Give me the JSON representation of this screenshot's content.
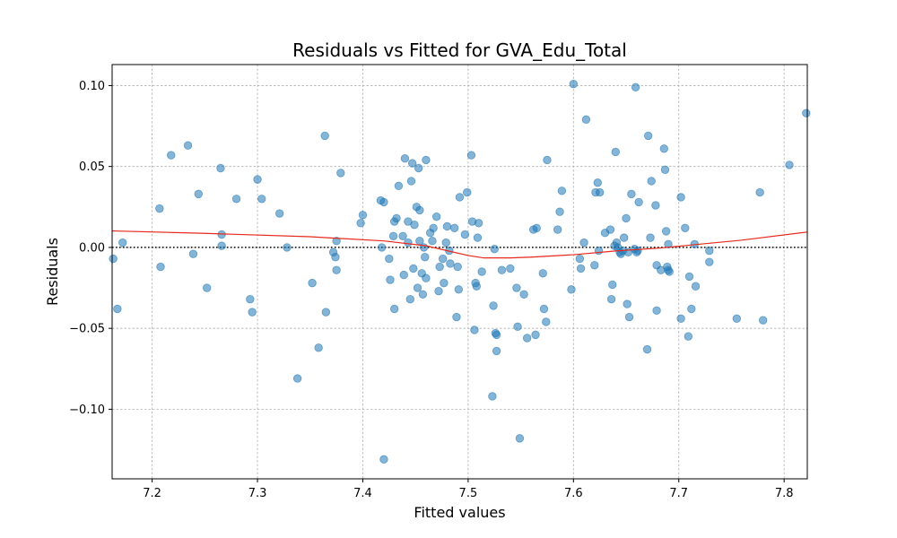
{
  "chart_data": {
    "type": "scatter",
    "title": "Residuals vs Fitted for GVA_Edu_Total",
    "xlabel": "Fitted values",
    "ylabel": "Residuals",
    "xlim": [
      7.162,
      7.822
    ],
    "ylim": [
      -0.143,
      0.113
    ],
    "xticks": [
      7.2,
      7.3,
      7.4,
      7.5,
      7.6,
      7.7,
      7.8
    ],
    "xtick_labels": [
      "7.2",
      "7.3",
      "7.4",
      "7.5",
      "7.6",
      "7.7",
      "7.8"
    ],
    "yticks": [
      -0.1,
      -0.05,
      0.0,
      0.05,
      0.1
    ],
    "ytick_labels": [
      "−0.10",
      "−0.05",
      "0.00",
      "0.05",
      "0.10"
    ],
    "grid": true,
    "reference_line": {
      "y": 0,
      "style": "dotted",
      "color": "#000000"
    },
    "colors": {
      "points": "#1f77b4",
      "lowess": "#e8291c",
      "grid": "#b0b0b0"
    },
    "lowess": {
      "x": [
        7.162,
        7.25,
        7.35,
        7.42,
        7.46,
        7.5,
        7.515,
        7.54,
        7.56,
        7.6,
        7.64,
        7.68,
        7.72,
        7.76,
        7.822
      ],
      "y": [
        0.0102,
        0.0087,
        0.0066,
        0.004,
        0.001,
        -0.005,
        -0.0065,
        -0.0065,
        -0.006,
        -0.0045,
        -0.0022,
        -0.0005,
        0.002,
        0.0045,
        0.0095
      ]
    },
    "points": [
      [
        7.163,
        -0.007
      ],
      [
        7.167,
        -0.038
      ],
      [
        7.172,
        0.003
      ],
      [
        7.207,
        0.024
      ],
      [
        7.208,
        -0.012
      ],
      [
        7.218,
        0.057
      ],
      [
        7.234,
        0.063
      ],
      [
        7.239,
        -0.004
      ],
      [
        7.244,
        0.033
      ],
      [
        7.252,
        -0.025
      ],
      [
        7.265,
        0.049
      ],
      [
        7.266,
        0.008
      ],
      [
        7.266,
        0.001
      ],
      [
        7.28,
        0.03
      ],
      [
        7.293,
        -0.032
      ],
      [
        7.295,
        -0.04
      ],
      [
        7.3,
        0.042
      ],
      [
        7.304,
        0.03
      ],
      [
        7.321,
        0.021
      ],
      [
        7.328,
        0.0
      ],
      [
        7.338,
        -0.081
      ],
      [
        7.352,
        -0.022
      ],
      [
        7.358,
        -0.062
      ],
      [
        7.364,
        0.069
      ],
      [
        7.365,
        -0.04
      ],
      [
        7.372,
        -0.003
      ],
      [
        7.374,
        -0.006
      ],
      [
        7.375,
        0.004
      ],
      [
        7.375,
        -0.014
      ],
      [
        7.379,
        0.046
      ],
      [
        7.398,
        0.015
      ],
      [
        7.4,
        0.02
      ],
      [
        7.417,
        0.029
      ],
      [
        7.418,
        0.0
      ],
      [
        7.42,
        0.028
      ],
      [
        7.42,
        -0.131
      ],
      [
        7.425,
        -0.007
      ],
      [
        7.426,
        -0.02
      ],
      [
        7.429,
        0.007
      ],
      [
        7.43,
        0.016
      ],
      [
        7.43,
        -0.038
      ],
      [
        7.432,
        0.018
      ],
      [
        7.434,
        0.038
      ],
      [
        7.438,
        0.007
      ],
      [
        7.439,
        -0.017
      ],
      [
        7.44,
        0.055
      ],
      [
        7.443,
        0.016
      ],
      [
        7.443,
        0.003
      ],
      [
        7.445,
        -0.032
      ],
      [
        7.446,
        0.041
      ],
      [
        7.447,
        0.052
      ],
      [
        7.448,
        -0.013
      ],
      [
        7.449,
        0.014
      ],
      [
        7.451,
        0.025
      ],
      [
        7.452,
        -0.025
      ],
      [
        7.453,
        0.049
      ],
      [
        7.454,
        0.023
      ],
      [
        7.454,
        0.004
      ],
      [
        7.456,
        -0.016
      ],
      [
        7.457,
        -0.029
      ],
      [
        7.458,
        0.0
      ],
      [
        7.459,
        -0.006
      ],
      [
        7.46,
        0.054
      ],
      [
        7.46,
        -0.019
      ],
      [
        7.464,
        0.009
      ],
      [
        7.466,
        0.004
      ],
      [
        7.467,
        0.012
      ],
      [
        7.47,
        0.019
      ],
      [
        7.472,
        -0.027
      ],
      [
        7.473,
        -0.012
      ],
      [
        7.476,
        -0.007
      ],
      [
        7.477,
        -0.022
      ],
      [
        7.479,
        0.003
      ],
      [
        7.48,
        0.013
      ],
      [
        7.482,
        -0.002
      ],
      [
        7.483,
        -0.01
      ],
      [
        7.487,
        0.012
      ],
      [
        7.489,
        -0.043
      ],
      [
        7.49,
        -0.012
      ],
      [
        7.491,
        -0.026
      ],
      [
        7.492,
        0.031
      ],
      [
        7.497,
        0.008
      ],
      [
        7.499,
        0.034
      ],
      [
        7.503,
        0.057
      ],
      [
        7.504,
        0.016
      ],
      [
        7.506,
        -0.051
      ],
      [
        7.507,
        -0.022
      ],
      [
        7.508,
        -0.024
      ],
      [
        7.509,
        0.006
      ],
      [
        7.51,
        0.015
      ],
      [
        7.513,
        -0.015
      ],
      [
        7.523,
        -0.092
      ],
      [
        7.524,
        -0.036
      ],
      [
        7.525,
        -0.001
      ],
      [
        7.526,
        -0.053
      ],
      [
        7.527,
        -0.054
      ],
      [
        7.527,
        -0.064
      ],
      [
        7.532,
        -0.014
      ],
      [
        7.54,
        -0.013
      ],
      [
        7.546,
        -0.025
      ],
      [
        7.547,
        -0.049
      ],
      [
        7.549,
        -0.118
      ],
      [
        7.553,
        -0.029
      ],
      [
        7.556,
        -0.056
      ],
      [
        7.562,
        0.011
      ],
      [
        7.564,
        -0.054
      ],
      [
        7.565,
        0.012
      ],
      [
        7.571,
        -0.016
      ],
      [
        7.572,
        -0.038
      ],
      [
        7.574,
        -0.046
      ],
      [
        7.575,
        0.054
      ],
      [
        7.585,
        0.011
      ],
      [
        7.587,
        0.022
      ],
      [
        7.589,
        0.035
      ],
      [
        7.598,
        -0.026
      ],
      [
        7.6,
        0.101
      ],
      [
        7.606,
        -0.007
      ],
      [
        7.607,
        -0.013
      ],
      [
        7.61,
        0.003
      ],
      [
        7.612,
        0.079
      ],
      [
        7.62,
        -0.011
      ],
      [
        7.621,
        0.034
      ],
      [
        7.623,
        0.04
      ],
      [
        7.624,
        -0.002
      ],
      [
        7.625,
        0.034
      ],
      [
        7.63,
        0.009
      ],
      [
        7.635,
        0.011
      ],
      [
        7.636,
        -0.032
      ],
      [
        7.637,
        -0.023
      ],
      [
        7.639,
        0.001
      ],
      [
        7.64,
        0.059
      ],
      [
        7.641,
        0.003
      ],
      [
        7.642,
        0.0
      ],
      [
        7.644,
        -0.003
      ],
      [
        7.645,
        -0.004
      ],
      [
        7.647,
        -0.002
      ],
      [
        7.648,
        0.006
      ],
      [
        7.65,
        0.018
      ],
      [
        7.651,
        -0.035
      ],
      [
        7.652,
        -0.003
      ],
      [
        7.653,
        -0.043
      ],
      [
        7.655,
        0.033
      ],
      [
        7.658,
        -0.001
      ],
      [
        7.659,
        0.099
      ],
      [
        7.66,
        -0.003
      ],
      [
        7.661,
        -0.002
      ],
      [
        7.662,
        0.028
      ],
      [
        7.67,
        -0.063
      ],
      [
        7.671,
        0.069
      ],
      [
        7.673,
        0.006
      ],
      [
        7.674,
        0.041
      ],
      [
        7.678,
        0.026
      ],
      [
        7.679,
        -0.011
      ],
      [
        7.679,
        -0.039
      ],
      [
        7.683,
        -0.014
      ],
      [
        7.686,
        0.061
      ],
      [
        7.687,
        0.048
      ],
      [
        7.688,
        0.01
      ],
      [
        7.689,
        -0.012
      ],
      [
        7.69,
        0.002
      ],
      [
        7.69,
        -0.014
      ],
      [
        7.691,
        -0.015
      ],
      [
        7.702,
        0.031
      ],
      [
        7.702,
        -0.044
      ],
      [
        7.706,
        0.012
      ],
      [
        7.709,
        -0.055
      ],
      [
        7.71,
        -0.018
      ],
      [
        7.712,
        -0.038
      ],
      [
        7.715,
        0.002
      ],
      [
        7.716,
        -0.024
      ],
      [
        7.729,
        -0.002
      ],
      [
        7.729,
        -0.009
      ],
      [
        7.755,
        -0.044
      ],
      [
        7.777,
        0.034
      ],
      [
        7.78,
        -0.045
      ],
      [
        7.805,
        0.051
      ],
      [
        7.821,
        0.083
      ]
    ]
  }
}
